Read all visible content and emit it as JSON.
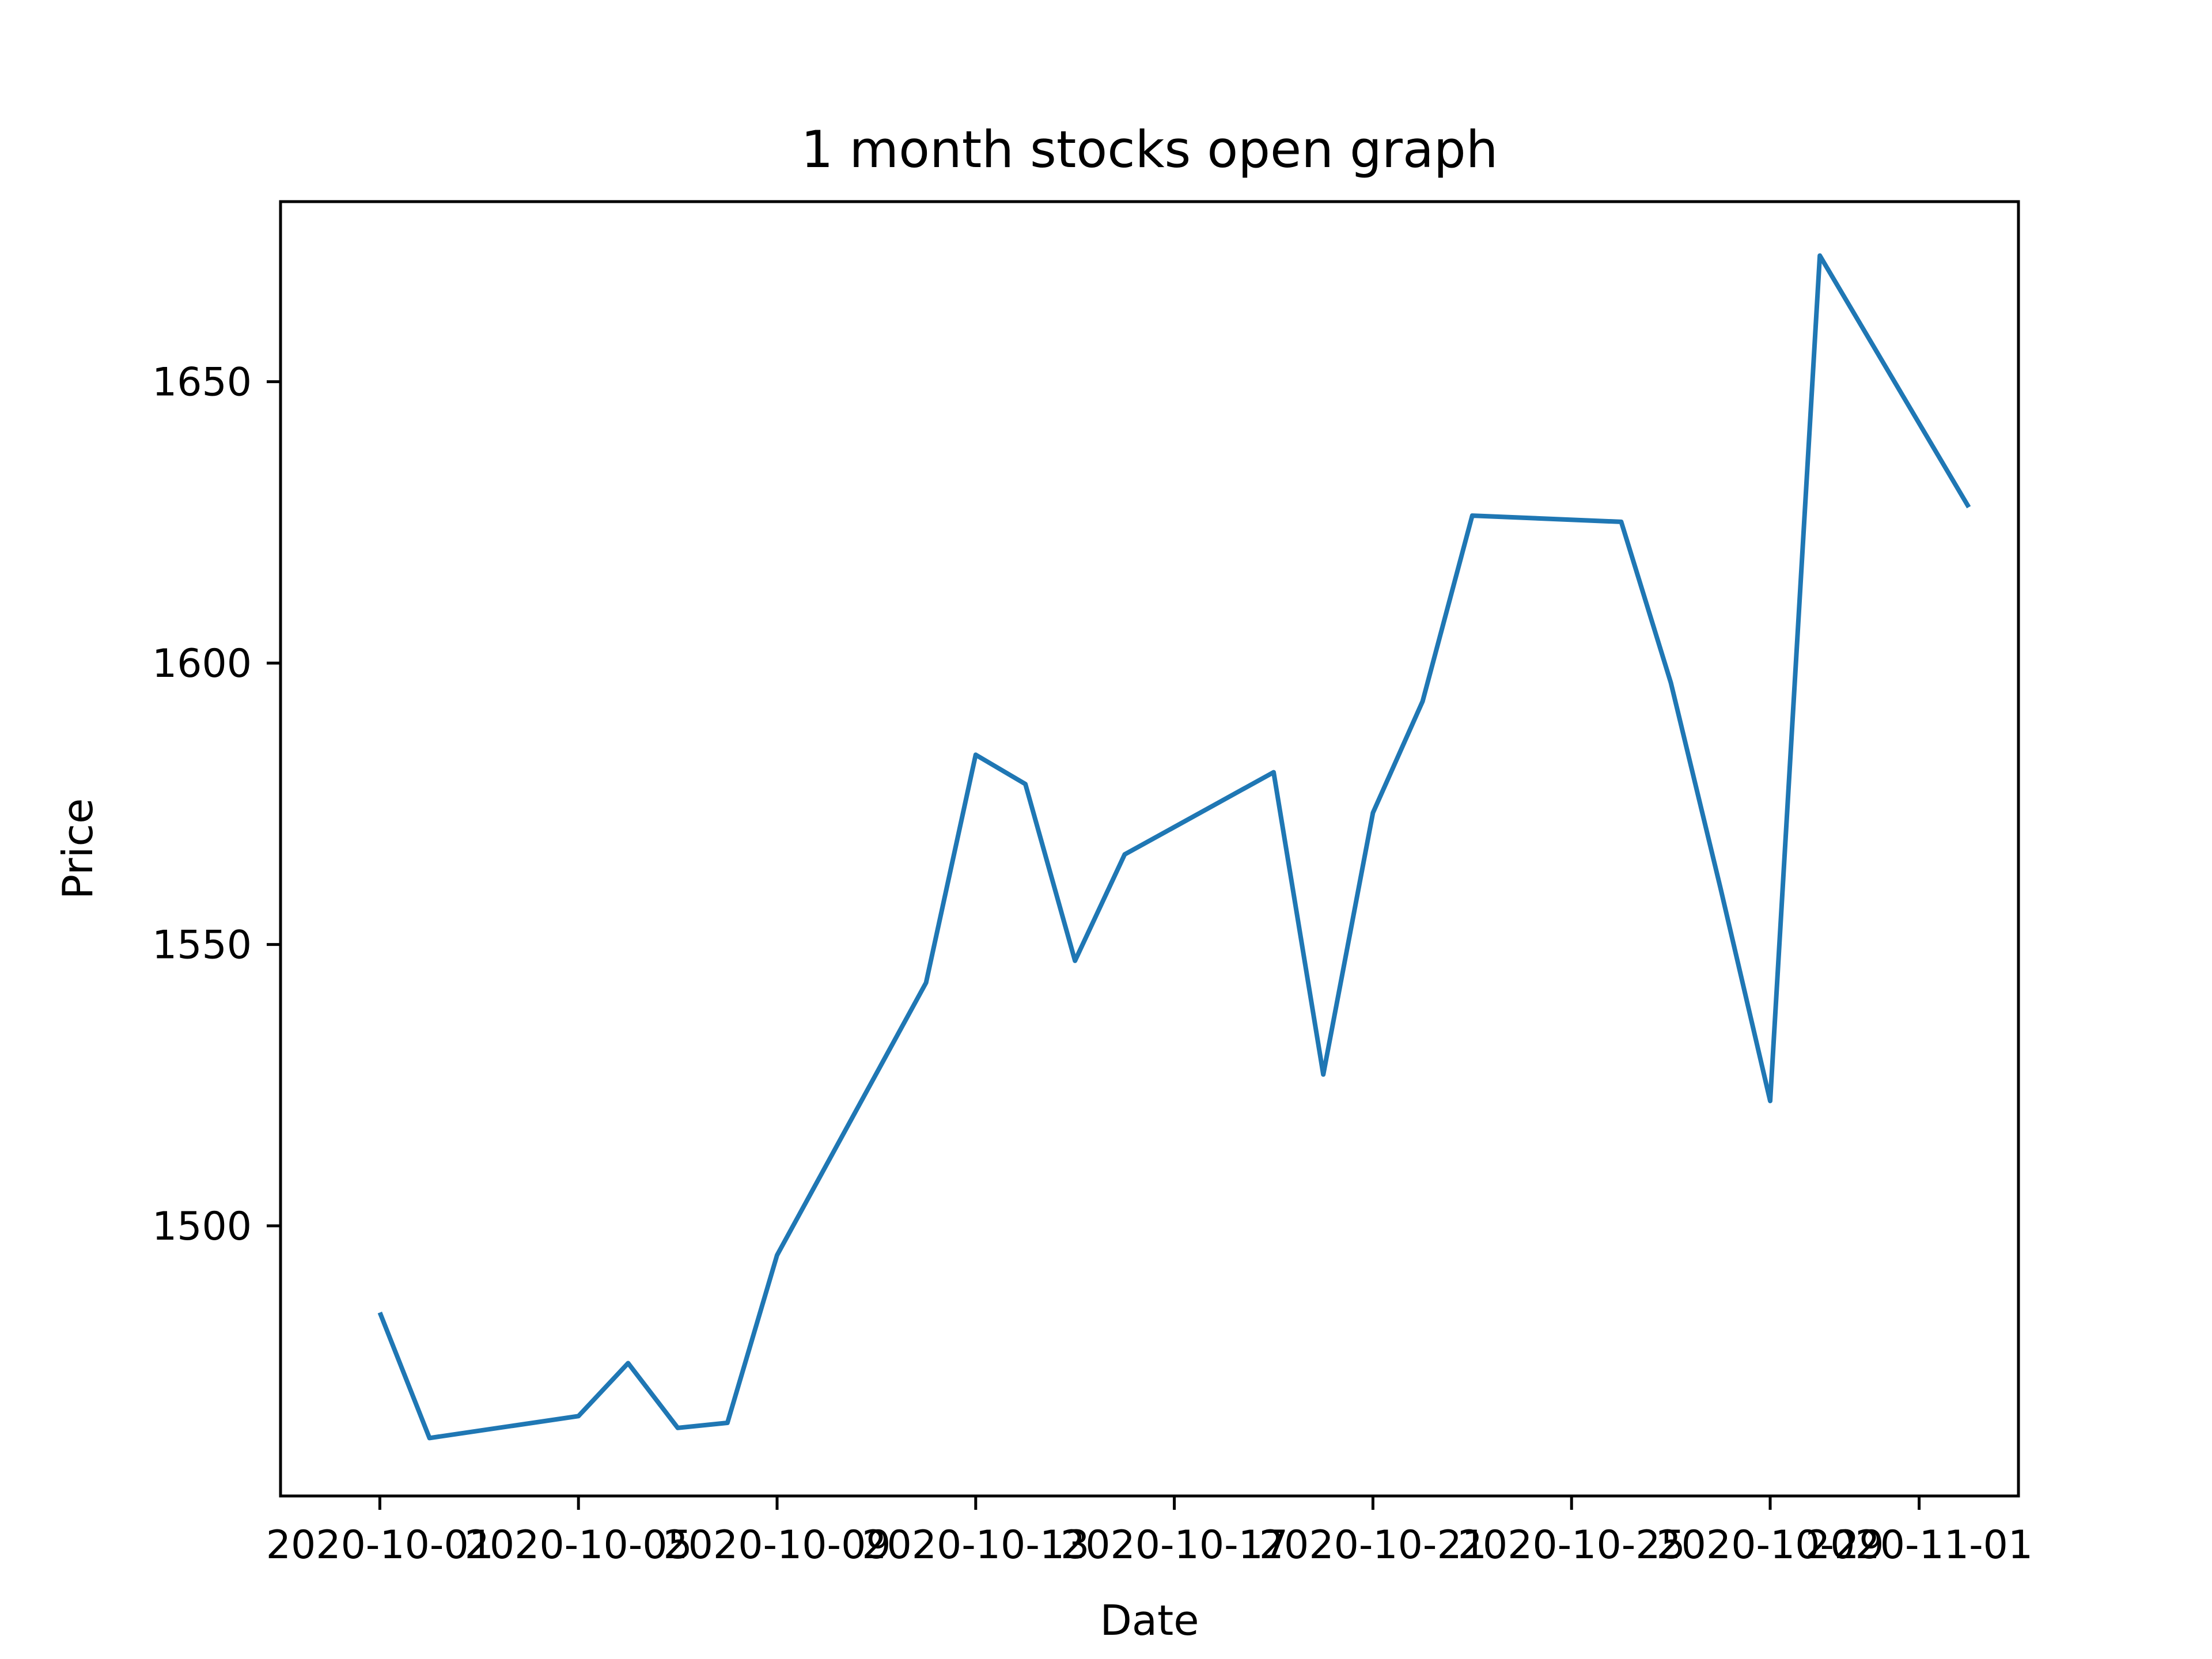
{
  "chart_data": {
    "type": "line",
    "title": "1 month stocks open graph",
    "xlabel": "Date",
    "ylabel": "Price",
    "x_tick_labels": [
      "2020-10-01",
      "2020-10-05",
      "2020-10-09",
      "2020-10-13",
      "2020-10-17",
      "2020-10-21",
      "2020-10-25",
      "2020-10-29",
      "2020-11-01"
    ],
    "y_ticks": [
      1500,
      1550,
      1600,
      1650
    ],
    "xlim": [
      "2020-09-29",
      "2020-11-03"
    ],
    "ylim": [
      1452,
      1682
    ],
    "grid": false,
    "series": [
      {
        "color": "#1f77b4",
        "x": [
          "2020-10-01",
          "2020-10-02",
          "2020-10-05",
          "2020-10-06",
          "2020-10-07",
          "2020-10-08",
          "2020-10-09",
          "2020-10-12",
          "2020-10-13",
          "2020-10-14",
          "2020-10-15",
          "2020-10-16",
          "2020-10-19",
          "2020-10-20",
          "2020-10-21",
          "2020-10-22",
          "2020-10-23",
          "2020-10-26",
          "2020-10-27",
          "2020-10-28",
          "2020-10-29",
          "2020-10-30",
          "2020-11-02"
        ],
        "values": [
          1484.6,
          1462.3,
          1466.2,
          1475.6,
          1464.1,
          1465.0,
          1494.8,
          1543.2,
          1583.7,
          1578.5,
          1547.1,
          1566.0,
          1580.6,
          1526.9,
          1573.4,
          1593.2,
          1626.2,
          1625.1,
          1596.5,
          1560.0,
          1522.2,
          1672.4,
          1627.7
        ]
      }
    ]
  }
}
